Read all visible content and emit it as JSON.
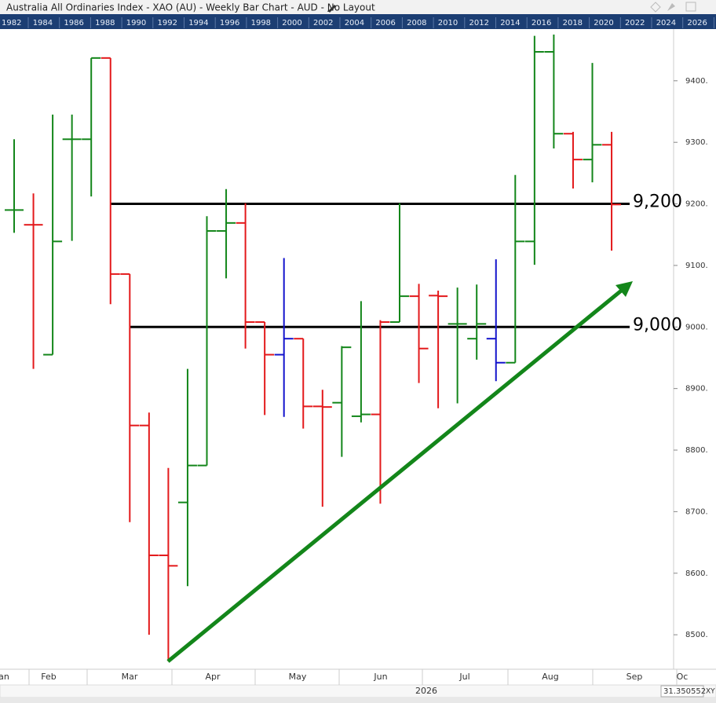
{
  "chart_data": {
    "type": "ohlc",
    "title": "Australia All Ordinaries Index - XAO (AU) - Weekly Bar Chart - AUD - No Layout",
    "navigator_years": [
      "1982",
      "1984",
      "1986",
      "1988",
      "1990",
      "1992",
      "1994",
      "1996",
      "1998",
      "2000",
      "2002",
      "2004",
      "2006",
      "2008",
      "2010",
      "2012",
      "2014",
      "2016",
      "2018",
      "2020",
      "2022",
      "2024",
      "2026"
    ],
    "months": [
      "an",
      "Feb",
      "Mar",
      "Apr",
      "May",
      "Jun",
      "Jul",
      "Aug",
      "Sep",
      "Oc"
    ],
    "year_label": "2026",
    "status_value": "31.350552",
    "status_mode": "XY",
    "open": [
      9190,
      9166,
      8955,
      9305,
      9305,
      9437,
      9086,
      8840,
      8629,
      8715,
      8775,
      9156,
      9169,
      9008,
      8955,
      8981,
      8871,
      8877,
      8855,
      8858,
      9008,
      9050,
      9051,
      9005,
      8981,
      8981,
      8942,
      9139,
      9447,
      9314,
      9272,
      9296
    ],
    "high": [
      9305,
      9217,
      9345,
      9345,
      9437,
      9437,
      9086,
      8861,
      8771,
      8932,
      9180,
      9224,
      9201,
      9008,
      9112,
      8981,
      8898,
      8969,
      9042,
      9011,
      9201,
      9070,
      9059,
      9064,
      9069,
      9110,
      9247,
      9473,
      9475,
      9317,
      9429,
      9317
    ],
    "low": [
      9153,
      8932,
      8955,
      9140,
      9212,
      9037,
      8683,
      8500,
      8457,
      8579,
      8775,
      9079,
      8965,
      8857,
      8854,
      8835,
      8708,
      8789,
      8845,
      8713,
      9008,
      8909,
      8868,
      8876,
      8947,
      8912,
      8942,
      9101,
      9290,
      9225,
      9235,
      9124
    ],
    "close": [
      9190,
      9166,
      9139,
      9305,
      9437,
      9086,
      8840,
      8629,
      8612,
      8775,
      9156,
      9169,
      9008,
      8955,
      8981,
      8871,
      8870,
      8967,
      8858,
      9008,
      9050,
      8965,
      9050,
      9005,
      9005,
      8942,
      9139,
      9447,
      9314,
      9272,
      9296,
      9199
    ],
    "colors": [
      "#13861a",
      "#e3191b",
      "#13861a",
      "#13861a",
      "#13861a",
      "#e3191b",
      "#e3191b",
      "#e3191b",
      "#e3191b",
      "#13861a",
      "#13861a",
      "#13861a",
      "#e3191b",
      "#e3191b",
      "#1414cc",
      "#e3191b",
      "#e3191b",
      "#13861a",
      "#13861a",
      "#e3191b",
      "#13861a",
      "#e3191b",
      "#e3191b",
      "#13861a",
      "#13861a",
      "#1414cc",
      "#13861a",
      "#13861a",
      "#13861a",
      "#e3191b",
      "#13861a",
      "#e3191b"
    ],
    "ylim": [
      8444,
      9484
    ],
    "yticks": [
      {
        "value": 8500,
        "label": "8500."
      },
      {
        "value": 8600,
        "label": "8600."
      },
      {
        "value": 8700,
        "label": "8700."
      },
      {
        "value": 8800,
        "label": "8800."
      },
      {
        "value": 8900,
        "label": "8900."
      },
      {
        "value": 9000,
        "label": "9000."
      },
      {
        "value": 9100,
        "label": "9100."
      },
      {
        "value": 9200,
        "label": "9200."
      },
      {
        "value": 9300,
        "label": "9300."
      },
      {
        "value": 9400,
        "label": "9400."
      }
    ],
    "levels": [
      {
        "value": 9200,
        "label": "9,200"
      },
      {
        "value": 9000,
        "label": "9,000"
      }
    ],
    "trendline_color": "#13861a"
  }
}
